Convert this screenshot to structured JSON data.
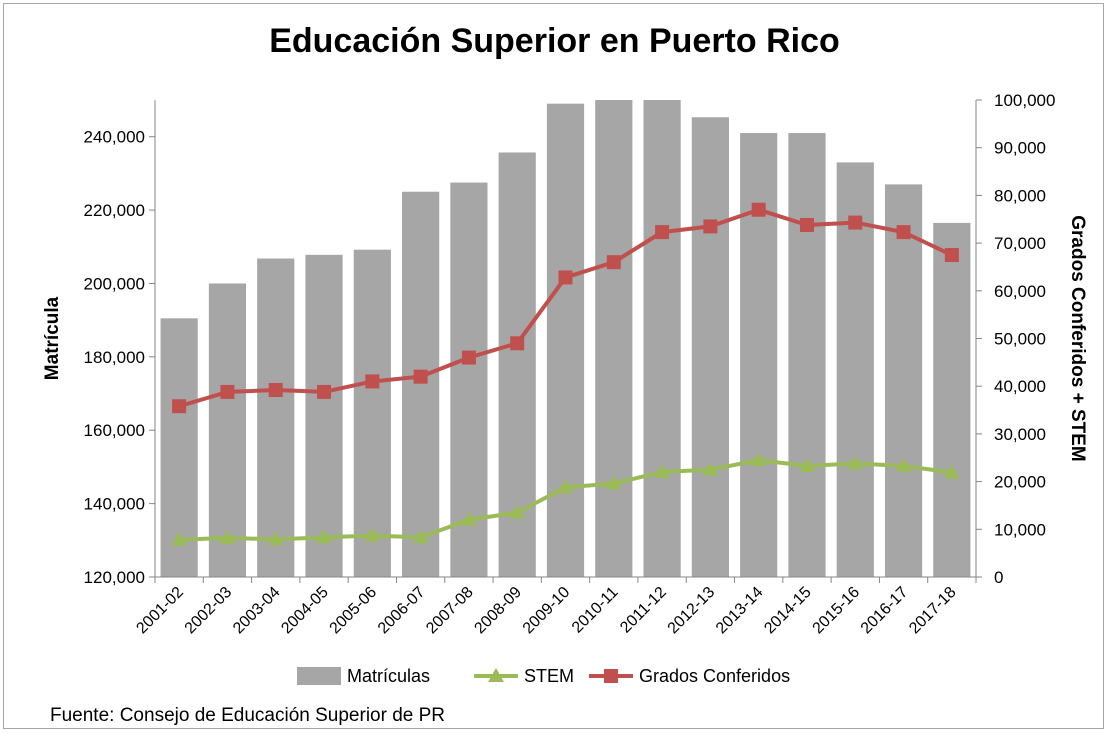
{
  "chart_data": {
    "type": "bar",
    "title": "Educación Superior en Puerto Rico",
    "ylabel": "Matrícula",
    "y2label": "Grados Conferidos + STEM",
    "source": "Fuente: Consejo de Educación Superior de PR",
    "categories": [
      "2001-02",
      "2002-03",
      "2003-04",
      "2004-05",
      "2005-06",
      "2006-07",
      "2007-08",
      "2008-09",
      "2009-10",
      "2010-11",
      "2011-12",
      "2012-13",
      "2013-14",
      "2014-15",
      "2015-16",
      "2016-17",
      "2017-18"
    ],
    "ylim": [
      120000,
      250000
    ],
    "y_ticks": [
      120000,
      140000,
      160000,
      180000,
      200000,
      220000,
      240000
    ],
    "y_tick_labels": [
      "120,000",
      "140,000",
      "160,000",
      "180,000",
      "200,000",
      "220,000",
      "240,000"
    ],
    "y2lim": [
      0,
      100000
    ],
    "y2_ticks": [
      0,
      10000,
      20000,
      30000,
      40000,
      50000,
      60000,
      70000,
      80000,
      90000,
      100000
    ],
    "y2_tick_labels": [
      "0",
      "10,000",
      "20,000",
      "30,000",
      "40,000",
      "50,000",
      "60,000",
      "70,000",
      "80,000",
      "90,000",
      "100,000"
    ],
    "grid": false,
    "legend_position": "bottom",
    "series": [
      {
        "name": "Matrículas",
        "type": "bar",
        "axis": "left",
        "color": "#a6a6a6",
        "values": [
          190500,
          200000,
          206800,
          207800,
          209200,
          225000,
          227500,
          235700,
          249000,
          250000,
          250000,
          245300,
          241000,
          241000,
          233000,
          227000,
          216500
        ]
      },
      {
        "name": "STEM",
        "type": "line",
        "axis": "right",
        "color": "#9bbb59",
        "marker": "triangle",
        "values": [
          7800,
          8200,
          7900,
          8300,
          8700,
          8300,
          12000,
          13500,
          18800,
          19600,
          22000,
          22500,
          24500,
          23300,
          23800,
          23300,
          21900
        ]
      },
      {
        "name": "Grados Conferidos",
        "type": "line",
        "axis": "right",
        "color": "#c0504d",
        "marker": "square",
        "values": [
          35800,
          38800,
          39200,
          38800,
          41000,
          42000,
          46000,
          49000,
          62800,
          66000,
          72300,
          73500,
          77000,
          73800,
          74300,
          72300,
          67500
        ]
      }
    ]
  }
}
